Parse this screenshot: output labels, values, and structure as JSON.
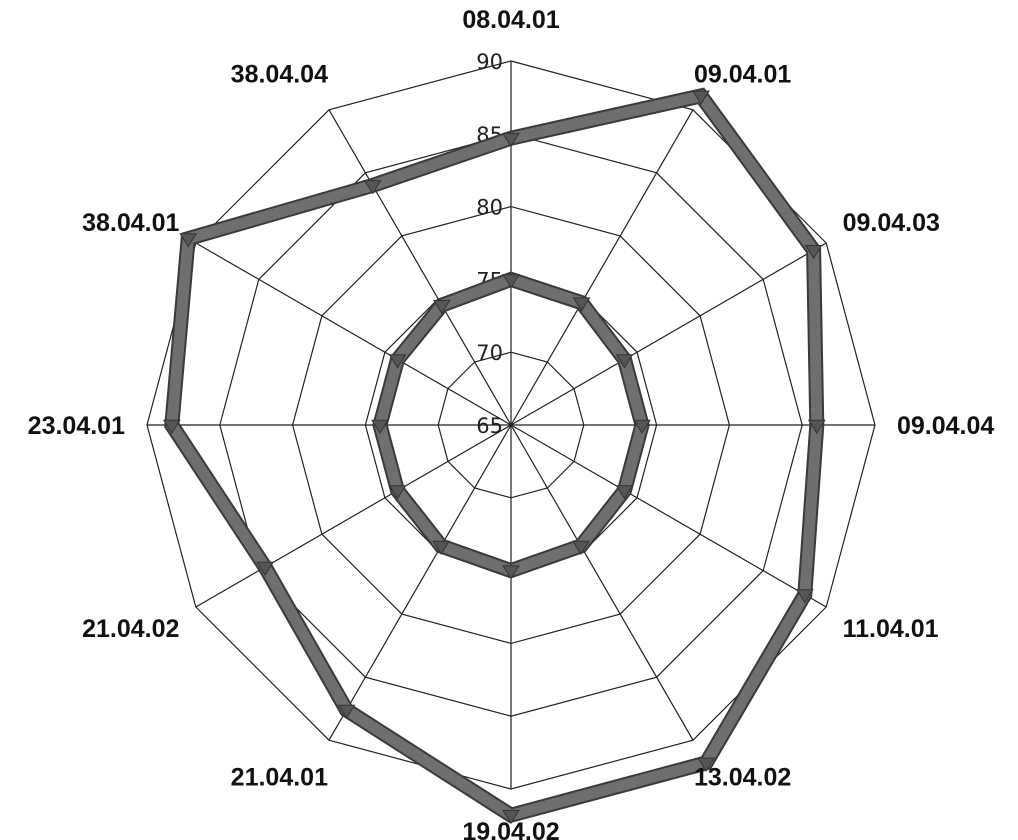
{
  "chart_data": {
    "type": "radar",
    "categories": [
      "08.04.01",
      "09.04.01",
      "09.04.03",
      "09.04.04",
      "11.04.01",
      "13.04.02",
      "19.04.02",
      "21.04.01",
      "21.04.02",
      "23.04.01",
      "38.04.01",
      "38.04.04"
    ],
    "r_ticks": [
      65,
      70,
      75,
      80,
      85,
      90
    ],
    "r_range": [
      65,
      90
    ],
    "grid": true,
    "series": [
      {
        "values": [
          84.7,
          91.1,
          89.0,
          86.0,
          88.3,
          91.8,
          91.8,
          87.6,
          84.5,
          88.3,
          90.6,
          84.0
        ],
        "color": "#6f6f6f"
      },
      {
        "values": [
          75.0,
          74.7,
          74.0,
          74.0,
          74.0,
          74.6,
          75.0,
          74.6,
          74.0,
          74.0,
          74.0,
          74.5
        ],
        "color": "#6f6f6f"
      }
    ]
  }
}
